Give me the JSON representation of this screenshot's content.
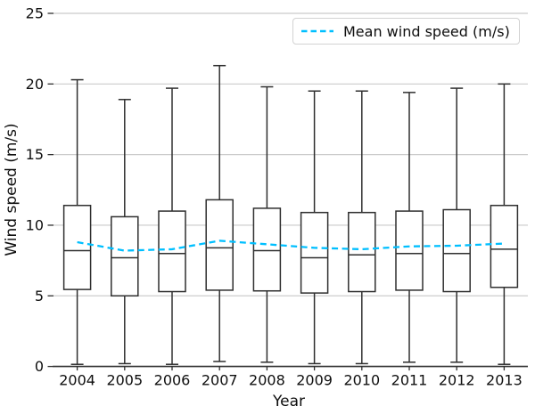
{
  "figure": {
    "background": "#ffffff"
  },
  "chart_data": {
    "type": "boxplot",
    "title": "",
    "xlabel": "Year",
    "ylabel": "Wind speed (m/s)",
    "ylim": [
      0,
      25
    ],
    "y_ticks": [
      0,
      5,
      10,
      15,
      20,
      25
    ],
    "grid": "horizontal-gridlines-on",
    "legend_position": "upper right",
    "categories": [
      "2004",
      "2005",
      "2006",
      "2007",
      "2008",
      "2009",
      "2010",
      "2011",
      "2012",
      "2013"
    ],
    "boxes": [
      {
        "year": "2004",
        "whisker_low": 0.15,
        "q1": 5.45,
        "median": 8.2,
        "q3": 11.4,
        "whisker_high": 20.3
      },
      {
        "year": "2005",
        "whisker_low": 0.2,
        "q1": 5.0,
        "median": 7.7,
        "q3": 10.6,
        "whisker_high": 18.9
      },
      {
        "year": "2006",
        "whisker_low": 0.15,
        "q1": 5.3,
        "median": 8.0,
        "q3": 11.0,
        "whisker_high": 19.7
      },
      {
        "year": "2007",
        "whisker_low": 0.35,
        "q1": 5.4,
        "median": 8.4,
        "q3": 11.8,
        "whisker_high": 21.3
      },
      {
        "year": "2008",
        "whisker_low": 0.3,
        "q1": 5.35,
        "median": 8.2,
        "q3": 11.2,
        "whisker_high": 19.8
      },
      {
        "year": "2009",
        "whisker_low": 0.2,
        "q1": 5.2,
        "median": 7.7,
        "q3": 10.9,
        "whisker_high": 19.5
      },
      {
        "year": "2010",
        "whisker_low": 0.2,
        "q1": 5.3,
        "median": 7.9,
        "q3": 10.9,
        "whisker_high": 19.5
      },
      {
        "year": "2011",
        "whisker_low": 0.3,
        "q1": 5.4,
        "median": 8.0,
        "q3": 11.0,
        "whisker_high": 19.4
      },
      {
        "year": "2012",
        "whisker_low": 0.3,
        "q1": 5.3,
        "median": 8.0,
        "q3": 11.1,
        "whisker_high": 19.7
      },
      {
        "year": "2013",
        "whisker_low": 0.15,
        "q1": 5.6,
        "median": 8.3,
        "q3": 11.4,
        "whisker_high": 20.0
      }
    ],
    "mean_series": {
      "name": "Mean wind speed (m/s)",
      "style": "dashed",
      "color": "#00BFFF",
      "values": [
        8.8,
        8.2,
        8.3,
        8.9,
        8.65,
        8.4,
        8.3,
        8.5,
        8.55,
        8.7
      ]
    },
    "legend": {
      "label": "Mean wind speed (m/s)"
    },
    "colors": {
      "box_edge": "#2f2f2f",
      "grid": "#cbcbcb",
      "axis": "#2f2f2f",
      "text": "#0f0f0f",
      "box_fill": "#ffffff"
    }
  }
}
